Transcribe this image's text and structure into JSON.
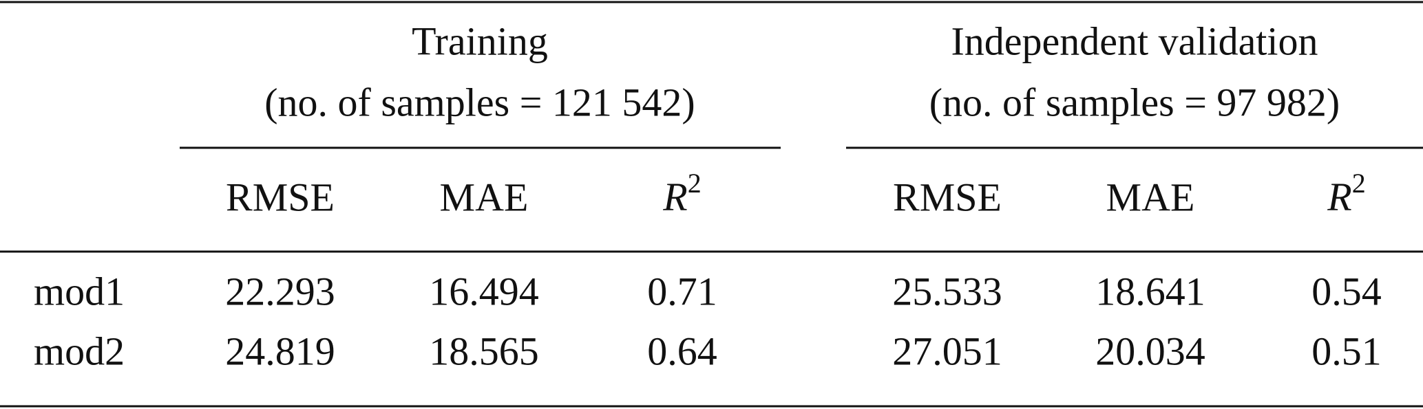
{
  "table": {
    "groups": [
      {
        "title": "Training",
        "subtitle": "(no. of samples = 121 542)"
      },
      {
        "title": "Independent validation",
        "subtitle": "(no. of samples = 97 982)"
      }
    ],
    "columns": [
      {
        "label": "RMSE"
      },
      {
        "label": "MAE"
      },
      {
        "label": "R",
        "sup": "2"
      },
      {
        "label": "RMSE"
      },
      {
        "label": "MAE"
      },
      {
        "label": "R",
        "sup": "2"
      }
    ],
    "rows": [
      [
        "mod1",
        "22.293",
        "16.494",
        "0.71",
        "25.533",
        "18.641",
        "0.54"
      ],
      [
        "mod2",
        "24.819",
        "18.565",
        "0.64",
        "27.051",
        "20.034",
        "0.51"
      ]
    ]
  }
}
